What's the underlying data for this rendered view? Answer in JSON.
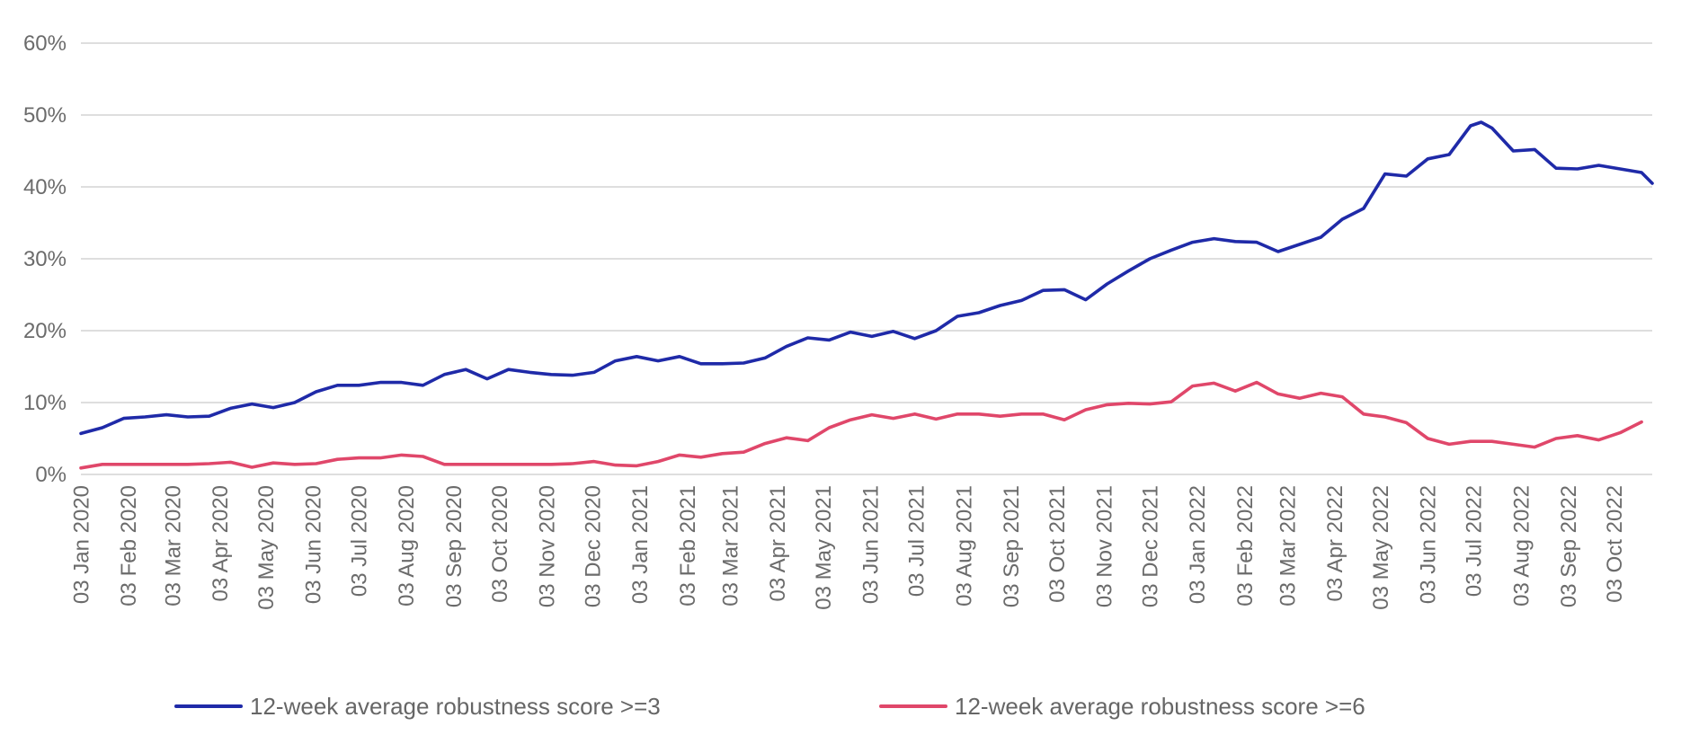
{
  "chart_data": {
    "type": "line",
    "title": "",
    "xlabel": "",
    "ylabel": "",
    "ylim": [
      0,
      60
    ],
    "y_ticks": [
      "0%",
      "10%",
      "20%",
      "30%",
      "40%",
      "50%",
      "60%"
    ],
    "y_tick_values": [
      0,
      10,
      20,
      30,
      40,
      50,
      60
    ],
    "grid": true,
    "legend_position": "bottom",
    "x_ticks": [
      "03 Jan 2020",
      "03 Feb 2020",
      "03 Mar 2020",
      "03 Apr 2020",
      "03 May 2020",
      "03 Jun 2020",
      "03 Jul 2020",
      "03 Aug 2020",
      "03 Sep 2020",
      "03 Oct 2020",
      "03 Nov 2020",
      "03 Dec 2020",
      "03 Jan 2021",
      "03 Feb 2021",
      "03 Mar 2021",
      "03 Apr 2021",
      "03 May 2021",
      "03 Jun 2021",
      "03 Jul 2021",
      "03 Aug 2021",
      "03 Sep 2021",
      "03 Oct 2021",
      "03 Nov 2021",
      "03 Dec 2021",
      "03 Jan 2022",
      "03 Feb 2022",
      "03 Mar 2022",
      "03 Apr 2022",
      "03 May 2022",
      "03 Jun 2022",
      "03 Jul 2022",
      "03 Aug 2022",
      "03 Sep 2022",
      "03 Oct 2022"
    ],
    "series": [
      {
        "name": "12-week average robustness score >=3",
        "color": "#1f2aa8",
        "points": [
          [
            "2020-01-03",
            5.7
          ],
          [
            "2020-01-17",
            6.5
          ],
          [
            "2020-01-31",
            7.8
          ],
          [
            "2020-02-14",
            8.0
          ],
          [
            "2020-02-28",
            8.3
          ],
          [
            "2020-03-13",
            8.0
          ],
          [
            "2020-03-27",
            8.1
          ],
          [
            "2020-04-10",
            9.2
          ],
          [
            "2020-04-24",
            9.8
          ],
          [
            "2020-05-08",
            9.3
          ],
          [
            "2020-05-22",
            10.0
          ],
          [
            "2020-06-05",
            11.5
          ],
          [
            "2020-06-19",
            12.4
          ],
          [
            "2020-07-03",
            12.4
          ],
          [
            "2020-07-17",
            12.8
          ],
          [
            "2020-07-31",
            12.8
          ],
          [
            "2020-08-14",
            12.4
          ],
          [
            "2020-08-28",
            13.9
          ],
          [
            "2020-09-11",
            14.6
          ],
          [
            "2020-09-25",
            13.3
          ],
          [
            "2020-10-09",
            14.6
          ],
          [
            "2020-10-23",
            14.2
          ],
          [
            "2020-11-06",
            13.9
          ],
          [
            "2020-11-20",
            13.8
          ],
          [
            "2020-12-04",
            14.2
          ],
          [
            "2020-12-18",
            15.8
          ],
          [
            "2021-01-01",
            16.4
          ],
          [
            "2021-01-15",
            15.8
          ],
          [
            "2021-01-29",
            16.4
          ],
          [
            "2021-02-12",
            15.4
          ],
          [
            "2021-02-26",
            15.4
          ],
          [
            "2021-03-12",
            15.5
          ],
          [
            "2021-03-26",
            16.2
          ],
          [
            "2021-04-09",
            17.8
          ],
          [
            "2021-04-23",
            19.0
          ],
          [
            "2021-05-07",
            18.7
          ],
          [
            "2021-05-21",
            19.8
          ],
          [
            "2021-06-04",
            19.2
          ],
          [
            "2021-06-18",
            19.9
          ],
          [
            "2021-07-02",
            18.9
          ],
          [
            "2021-07-16",
            20.0
          ],
          [
            "2021-07-30",
            22.0
          ],
          [
            "2021-08-13",
            22.5
          ],
          [
            "2021-08-27",
            23.5
          ],
          [
            "2021-09-10",
            24.2
          ],
          [
            "2021-09-24",
            25.6
          ],
          [
            "2021-10-08",
            25.7
          ],
          [
            "2021-10-22",
            24.3
          ],
          [
            "2021-11-05",
            26.5
          ],
          [
            "2021-11-19",
            28.3
          ],
          [
            "2021-12-03",
            30.0
          ],
          [
            "2021-12-17",
            31.2
          ],
          [
            "2021-12-31",
            32.3
          ],
          [
            "2022-01-14",
            32.8
          ],
          [
            "2022-01-28",
            32.4
          ],
          [
            "2022-02-11",
            32.3
          ],
          [
            "2022-02-25",
            31.0
          ],
          [
            "2022-03-11",
            32.0
          ],
          [
            "2022-03-25",
            33.0
          ],
          [
            "2022-04-08",
            35.5
          ],
          [
            "2022-04-22",
            37.0
          ],
          [
            "2022-05-06",
            41.8
          ],
          [
            "2022-05-20",
            41.5
          ],
          [
            "2022-06-03",
            43.9
          ],
          [
            "2022-06-17",
            44.5
          ],
          [
            "2022-07-01",
            48.5
          ],
          [
            "2022-07-08",
            49.0
          ],
          [
            "2022-07-15",
            48.2
          ],
          [
            "2022-07-29",
            45.0
          ],
          [
            "2022-08-12",
            45.2
          ],
          [
            "2022-08-26",
            42.6
          ],
          [
            "2022-09-09",
            42.5
          ],
          [
            "2022-09-23",
            43.0
          ],
          [
            "2022-10-07",
            42.5
          ],
          [
            "2022-10-21",
            42.0
          ],
          [
            "2022-10-28",
            40.5
          ]
        ]
      },
      {
        "name": "12-week average robustness score >=6",
        "color": "#e0476a",
        "points": [
          [
            "2020-01-03",
            0.9
          ],
          [
            "2020-01-17",
            1.4
          ],
          [
            "2020-02-14",
            1.4
          ],
          [
            "2020-03-13",
            1.4
          ],
          [
            "2020-03-27",
            1.5
          ],
          [
            "2020-04-10",
            1.7
          ],
          [
            "2020-04-24",
            1.0
          ],
          [
            "2020-05-08",
            1.6
          ],
          [
            "2020-05-22",
            1.4
          ],
          [
            "2020-06-05",
            1.5
          ],
          [
            "2020-06-19",
            2.1
          ],
          [
            "2020-07-03",
            2.3
          ],
          [
            "2020-07-17",
            2.3
          ],
          [
            "2020-07-31",
            2.7
          ],
          [
            "2020-08-14",
            2.5
          ],
          [
            "2020-08-28",
            1.4
          ],
          [
            "2020-09-11",
            1.4
          ],
          [
            "2020-10-09",
            1.4
          ],
          [
            "2020-11-06",
            1.4
          ],
          [
            "2020-11-20",
            1.5
          ],
          [
            "2020-12-04",
            1.8
          ],
          [
            "2020-12-18",
            1.3
          ],
          [
            "2021-01-01",
            1.2
          ],
          [
            "2021-01-15",
            1.8
          ],
          [
            "2021-01-29",
            2.7
          ],
          [
            "2021-02-12",
            2.4
          ],
          [
            "2021-02-26",
            2.9
          ],
          [
            "2021-03-12",
            3.1
          ],
          [
            "2021-03-26",
            4.3
          ],
          [
            "2021-04-09",
            5.1
          ],
          [
            "2021-04-23",
            4.7
          ],
          [
            "2021-05-07",
            6.5
          ],
          [
            "2021-05-21",
            7.6
          ],
          [
            "2021-06-04",
            8.3
          ],
          [
            "2021-06-18",
            7.8
          ],
          [
            "2021-07-02",
            8.4
          ],
          [
            "2021-07-16",
            7.7
          ],
          [
            "2021-07-30",
            8.4
          ],
          [
            "2021-08-13",
            8.4
          ],
          [
            "2021-08-27",
            8.1
          ],
          [
            "2021-09-10",
            8.4
          ],
          [
            "2021-09-24",
            8.4
          ],
          [
            "2021-10-08",
            7.6
          ],
          [
            "2021-10-22",
            9.0
          ],
          [
            "2021-11-05",
            9.7
          ],
          [
            "2021-11-19",
            9.9
          ],
          [
            "2021-12-03",
            9.8
          ],
          [
            "2021-12-17",
            10.1
          ],
          [
            "2021-12-31",
            12.3
          ],
          [
            "2022-01-14",
            12.7
          ],
          [
            "2022-01-28",
            11.6
          ],
          [
            "2022-02-11",
            12.8
          ],
          [
            "2022-02-25",
            11.2
          ],
          [
            "2022-03-11",
            10.6
          ],
          [
            "2022-03-25",
            11.3
          ],
          [
            "2022-04-08",
            10.8
          ],
          [
            "2022-04-22",
            8.4
          ],
          [
            "2022-05-06",
            8.0
          ],
          [
            "2022-05-20",
            7.2
          ],
          [
            "2022-06-03",
            5.0
          ],
          [
            "2022-06-17",
            4.2
          ],
          [
            "2022-07-01",
            4.6
          ],
          [
            "2022-07-15",
            4.6
          ],
          [
            "2022-07-29",
            4.2
          ],
          [
            "2022-08-12",
            3.8
          ],
          [
            "2022-08-26",
            5.0
          ],
          [
            "2022-09-09",
            5.4
          ],
          [
            "2022-09-23",
            4.8
          ],
          [
            "2022-10-07",
            5.8
          ],
          [
            "2022-10-21",
            7.3
          ]
        ]
      }
    ]
  }
}
